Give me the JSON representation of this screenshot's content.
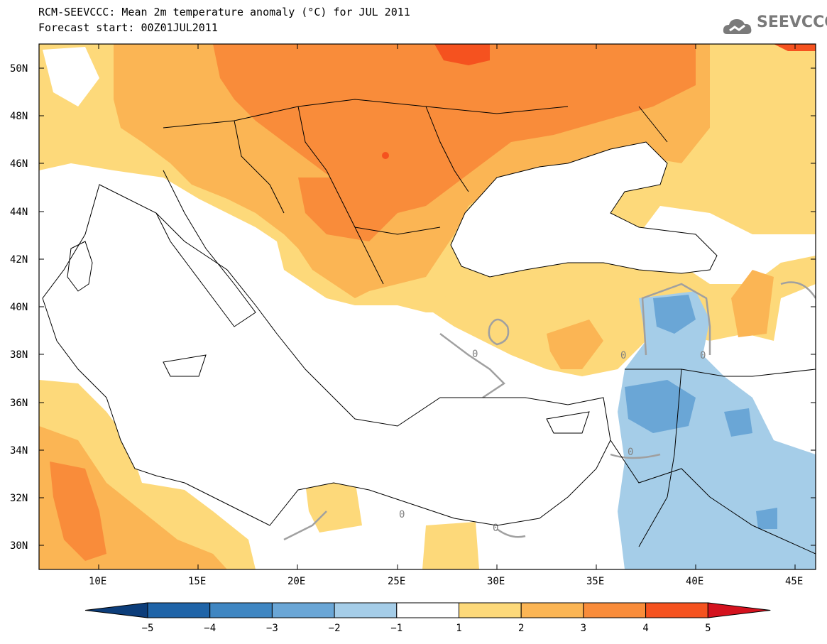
{
  "header": {
    "title": "RCM-SEEVCCC: Mean 2m temperature anomaly (°C) for JUL 2011",
    "subtitle": "Forecast start: 00Z01JUL2011",
    "logo_text": "SEEVCCC"
  },
  "map": {
    "lon_range": [
      7,
      46
    ],
    "lat_range": [
      29,
      51
    ],
    "lat_ticks": [
      "50N",
      "48N",
      "46N",
      "44N",
      "42N",
      "40N",
      "38N",
      "36N",
      "34N",
      "32N",
      "30N"
    ],
    "lon_ticks": [
      "10E",
      "15E",
      "20E",
      "25E",
      "30E",
      "35E",
      "40E",
      "45E"
    ],
    "contour_label": "0"
  },
  "colorbar": {
    "labels": [
      "−5",
      "−4",
      "−3",
      "−2",
      "−1",
      "1",
      "2",
      "3",
      "4",
      "5"
    ],
    "colors": [
      "#0c3d7a",
      "#1f64a8",
      "#3f86c2",
      "#6aa6d6",
      "#a5cde8",
      "#ffffff",
      "#fdd97a",
      "#fbb554",
      "#f98c3a",
      "#f5521f",
      "#d4121e"
    ]
  }
}
